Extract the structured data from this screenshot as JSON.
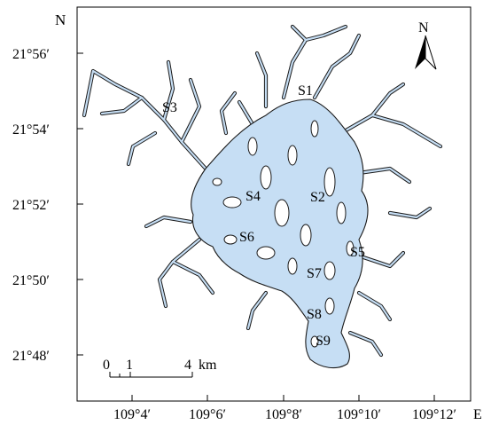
{
  "map": {
    "lat_axis_label": "N",
    "lon_axis_label": "E",
    "lat_ticks": [
      "21°56′",
      "21°54′",
      "21°52′",
      "21°50′",
      "21°48′"
    ],
    "lon_ticks": [
      "109°4′",
      "109°6′",
      "109°8′",
      "109°10′",
      "109°12′"
    ],
    "north_arrow_label": "N",
    "scale_bar": {
      "ticks": [
        "0",
        "1",
        "4"
      ],
      "unit": "km"
    },
    "water_color": "#c6def4",
    "stations": [
      {
        "id": "S1",
        "label": "S1"
      },
      {
        "id": "S2",
        "label": "S2"
      },
      {
        "id": "S3",
        "label": "S3"
      },
      {
        "id": "S4",
        "label": "S4"
      },
      {
        "id": "S5",
        "label": "S5"
      },
      {
        "id": "S6",
        "label": "S6"
      },
      {
        "id": "S7",
        "label": "S7"
      },
      {
        "id": "S8",
        "label": "S8"
      },
      {
        "id": "S9",
        "label": "S9"
      }
    ]
  }
}
